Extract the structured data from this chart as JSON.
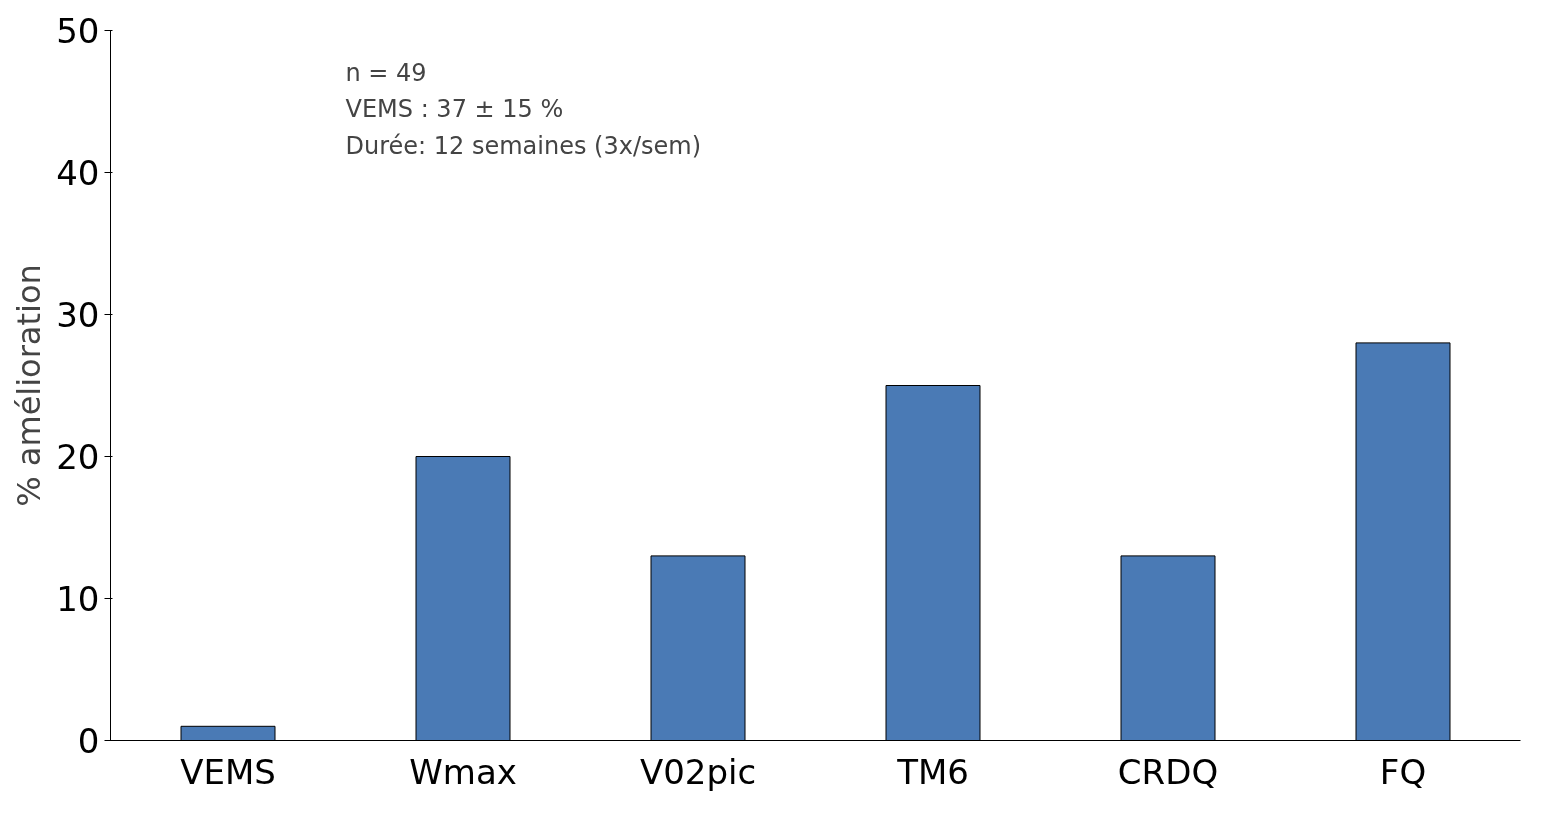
{
  "chart_data": {
    "type": "bar",
    "ylabel": "% amélioration",
    "categories": [
      "VEMS",
      "Wmax",
      "V02pic",
      "TM6",
      "CRDQ",
      "FQ"
    ],
    "values": [
      1,
      20,
      13,
      25,
      13,
      28
    ],
    "color": "#4a7ab5",
    "ylim": [
      0,
      50
    ],
    "yticks": [
      0,
      10,
      20,
      30,
      40,
      50
    ],
    "grid": false,
    "annotations": [
      "n = 49\nVEMS : 37 ± 15 %\nDurée: 12 semaines (3x/sem)"
    ]
  }
}
